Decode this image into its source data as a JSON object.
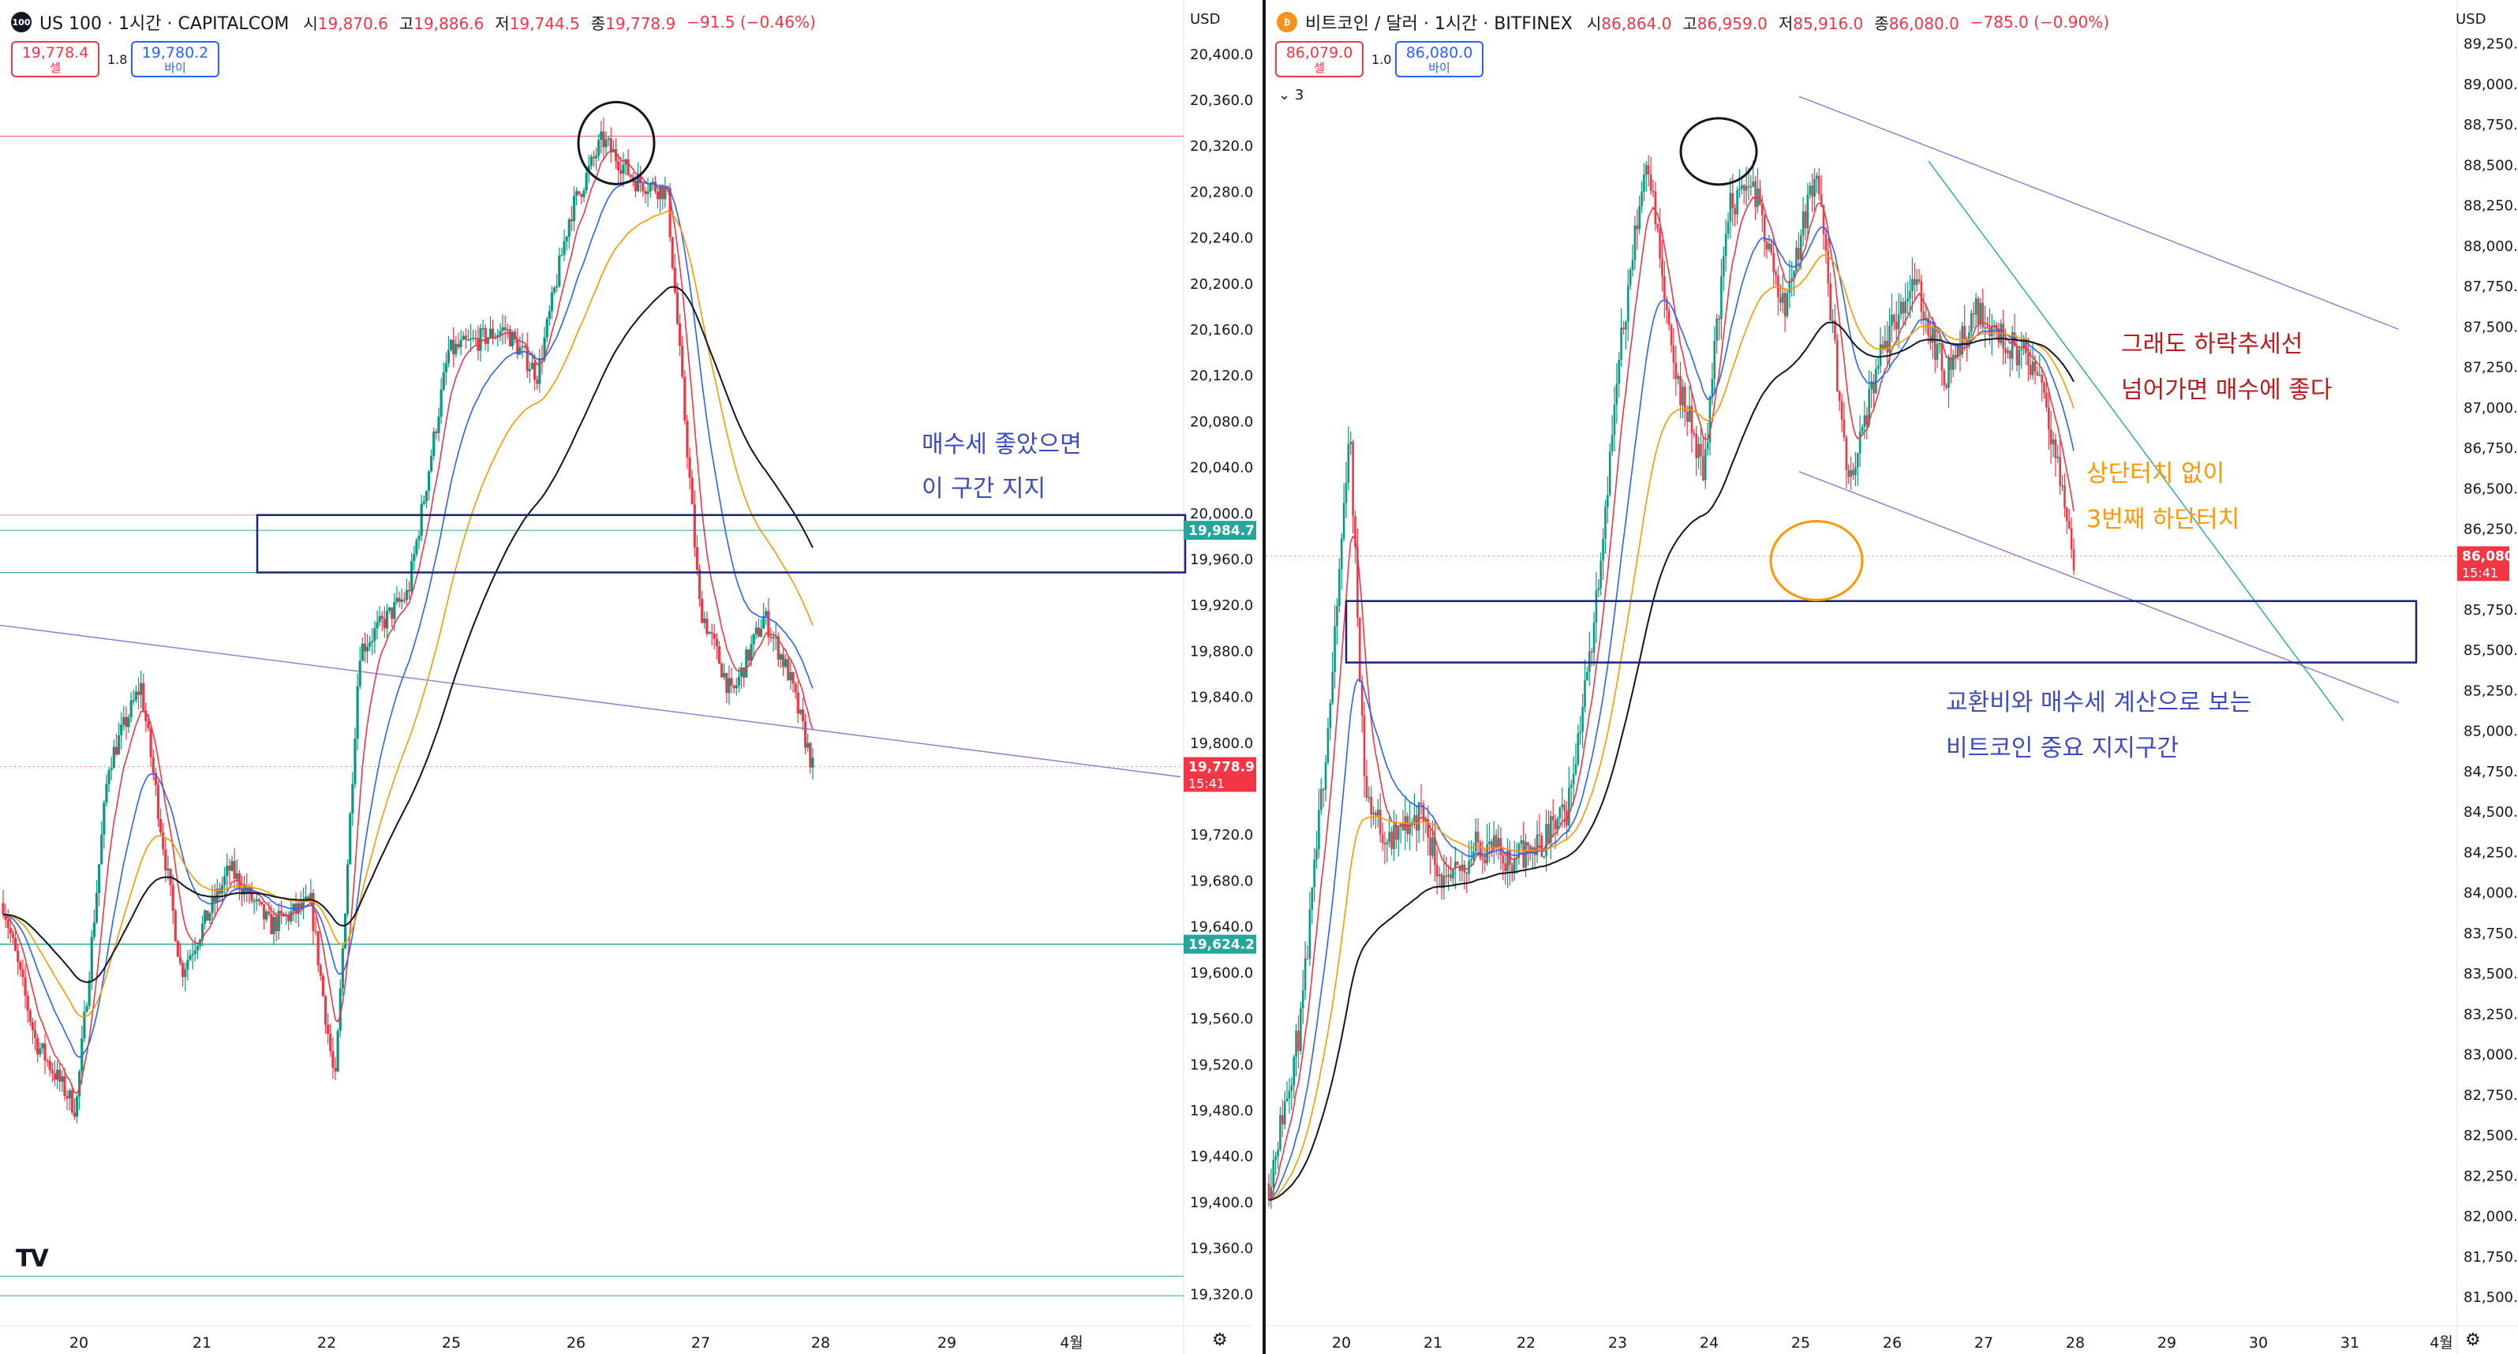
{
  "left": {
    "badge": "100",
    "title": "US 100 · 1시간 · CAPITALCOM",
    "ohlc": [
      {
        "label": "시",
        "value": "19,870.6"
      },
      {
        "label": "고",
        "value": "19,886.6"
      },
      {
        "label": "저",
        "value": "19,744.5"
      },
      {
        "label": "종",
        "value": "19,778.9"
      },
      {
        "label": "",
        "value": "−91.5 (−0.46%)"
      }
    ],
    "sell_price": "19,778.4",
    "sell_label": "셀",
    "buy_price": "19,780.2",
    "buy_label": "바이",
    "spread": "1.8",
    "currency": "USD",
    "y_min": 19292,
    "y_max": 20426,
    "y_ticks": [
      "20,400.0",
      "20,360.0",
      "20,320.0",
      "20,280.0",
      "20,240.0",
      "20,200.0",
      "20,160.0",
      "20,120.0",
      "20,080.0",
      "20,040.0",
      "20,000.0",
      "19,960.0",
      "19,920.0",
      "19,880.0",
      "19,840.0",
      "19,800.0",
      "19,720.0",
      "19,680.0",
      "19,640.0",
      "19,600.0",
      "19,560.0",
      "19,520.0",
      "19,480.0",
      "19,440.0",
      "19,400.0",
      "19,360.0",
      "19,320.0"
    ],
    "x_ticks": [
      "20",
      "21",
      "22",
      "25",
      "26",
      "27",
      "28",
      "29",
      "4월"
    ],
    "price_tags": [
      {
        "price": 19984.7,
        "label": "19,984.7",
        "color": "#26a69a"
      },
      {
        "price": 19778.9,
        "label": "19,778.9",
        "time": "15:41",
        "color": "#f23645"
      },
      {
        "price": 19624.2,
        "label": "19,624.2",
        "color": "#26a69a"
      }
    ],
    "support_box": {
      "top": 19998,
      "bottom": 19948
    },
    "notes": [
      {
        "line1": "매수세 좋았으면",
        "line2": "이 구간 지지",
        "color": "#3b4cc0"
      }
    ],
    "brand": "TV"
  },
  "right": {
    "badge": "₿",
    "title": "비트코인 / 달러 · 1시간 · BITFINEX",
    "ohlc": [
      {
        "label": "시",
        "value": "86,864.0"
      },
      {
        "label": "고",
        "value": "86,959.0"
      },
      {
        "label": "저",
        "value": "85,916.0"
      },
      {
        "label": "종",
        "value": "86,080.0"
      },
      {
        "label": "",
        "value": "−785.0 (−0.90%)"
      }
    ],
    "sell_price": "86,079.0",
    "sell_label": "셀",
    "buy_price": "86,080.0",
    "buy_label": "바이",
    "spread": "1.0",
    "currency": "USD",
    "indicator_count": "3",
    "y_min": 81320,
    "y_max": 89370,
    "y_ticks": [
      "89,250.0",
      "89,000.0",
      "88,750.0",
      "88,500.0",
      "88,250.0",
      "88,000.0",
      "87,750.0",
      "87,500.0",
      "87,250.0",
      "87,000.0",
      "86,750.0",
      "86,500.0",
      "86,250.0",
      "85,750.0",
      "85,500.0",
      "85,250.0",
      "85,000.0",
      "84,750.0",
      "84,500.0",
      "84,250.0",
      "84,000.0",
      "83,750.0",
      "83,500.0",
      "83,250.0",
      "83,000.0",
      "82,750.0",
      "82,500.0",
      "82,250.0",
      "82,000.0",
      "81,750.0",
      "81,500.0"
    ],
    "x_ticks": [
      "20",
      "21",
      "22",
      "23",
      "24",
      "25",
      "26",
      "27",
      "28",
      "29",
      "30",
      "31",
      "4월"
    ],
    "price_tags": [
      {
        "price": 86080,
        "label": "86,080.0",
        "time": "15:41",
        "color": "#f23645"
      }
    ],
    "support_box": {
      "top": 85800,
      "bottom": 85420
    },
    "notes": [
      {
        "line1": "그래도 하락추세선",
        "line2": "넘어가면 매수에 좋다",
        "color": "#b71c1c"
      },
      {
        "line1": "상단터치 없이",
        "line2": "3번째 하단터치",
        "color": "#ff9800"
      },
      {
        "line1": "교환비와 매수세 계산으로 보는",
        "line2": "비트코인 중요 지지구간",
        "color": "#3b4cc0"
      }
    ]
  },
  "colors": {
    "up": "#089981",
    "down": "#f23645",
    "ma_fast": "#f23645",
    "ma_mid": "#2962ff",
    "ma_orange": "#ff9800",
    "ma_slow": "#131722",
    "box": "#1a237e",
    "trend": "#9575cd",
    "teal": "#26a69a"
  }
}
